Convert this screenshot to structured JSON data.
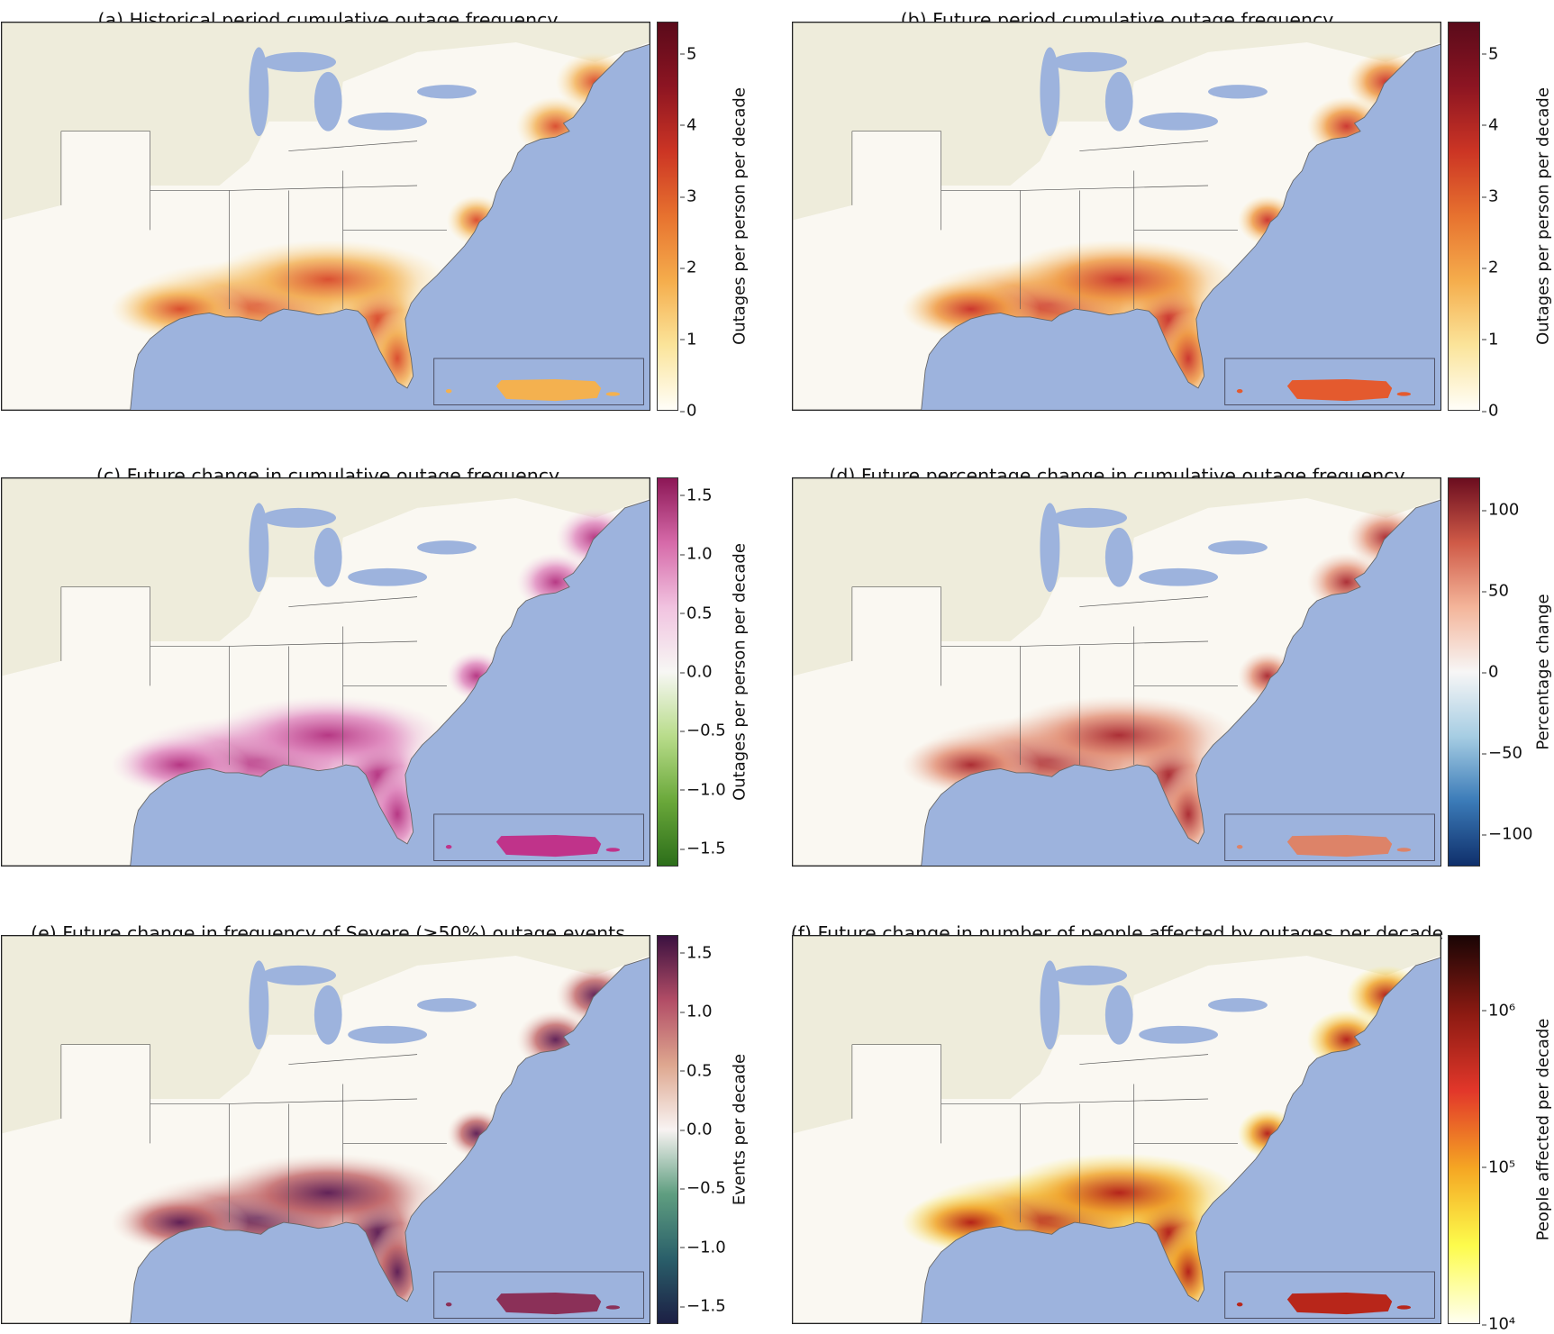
{
  "figure": {
    "panels": [
      {
        "id": "a",
        "title": "(a) Historical period cumulative outage frequency",
        "colorbar": {
          "label": "Outages per person per decade",
          "scale": "linear",
          "range": [
            0,
            5.45
          ],
          "ticks": [
            {
              "v": 0,
              "t": "0"
            },
            {
              "v": 1,
              "t": "1"
            },
            {
              "v": 2,
              "t": "2"
            },
            {
              "v": 3,
              "t": "3"
            },
            {
              "v": 4,
              "t": "4"
            },
            {
              "v": 5,
              "t": "5"
            }
          ],
          "colormap": [
            "#fffef8",
            "#fbe49a",
            "#f5ad4c",
            "#e7722f",
            "#cc3524",
            "#8d1522",
            "#5a0a1a"
          ]
        },
        "shading": {
          "low": "#fbe7b0",
          "mid": "#f3b259",
          "high": "#d8482a",
          "puerto_rico": "#f4b14f"
        }
      },
      {
        "id": "b",
        "title": "(b) Future period cumulative outage frequency",
        "colorbar": {
          "label": "Outages per person per decade",
          "scale": "linear",
          "range": [
            0,
            5.45
          ],
          "ticks": [
            {
              "v": 0,
              "t": "0"
            },
            {
              "v": 1,
              "t": "1"
            },
            {
              "v": 2,
              "t": "2"
            },
            {
              "v": 3,
              "t": "3"
            },
            {
              "v": 4,
              "t": "4"
            },
            {
              "v": 5,
              "t": "5"
            }
          ],
          "colormap": [
            "#fffef8",
            "#fbe49a",
            "#f5ad4c",
            "#e7722f",
            "#cc3524",
            "#8d1522",
            "#5a0a1a"
          ]
        },
        "shading": {
          "low": "#fbe0a0",
          "mid": "#ef9a45",
          "high": "#c9302a",
          "puerto_rico": "#e45a2e"
        }
      },
      {
        "id": "c",
        "title": "(c) Future change in cumulative outage frequency",
        "colorbar": {
          "label": "Outages per person per decade",
          "scale": "linear",
          "range": [
            -1.65,
            1.65
          ],
          "ticks": [
            {
              "v": 1.5,
              "t": "1.5"
            },
            {
              "v": 1.0,
              "t": "1.0"
            },
            {
              "v": 0.5,
              "t": "0.5"
            },
            {
              "v": 0,
              "t": "0.0"
            },
            {
              "v": -0.5,
              "t": "−0.5"
            },
            {
              "v": -1.0,
              "t": "−1.0"
            },
            {
              "v": -1.5,
              "t": "−1.5"
            }
          ],
          "colormap": [
            "#2c6e1a",
            "#6aa83a",
            "#b8dc8a",
            "#f7f7f4",
            "#f1c3e0",
            "#d66aa9",
            "#8c1756"
          ]
        },
        "shading": {
          "low": "#f5dceb",
          "mid": "#e08cc0",
          "high": "#b3307f",
          "puerto_rico": "#c0338a"
        }
      },
      {
        "id": "d",
        "title": "(d) Future percentage change in cumulative outage frequency",
        "colorbar": {
          "label": "Percentage change",
          "scale": "linear",
          "range": [
            -120,
            120
          ],
          "ticks": [
            {
              "v": 100,
              "t": "100"
            },
            {
              "v": 50,
              "t": "50"
            },
            {
              "v": 0,
              "t": "0"
            },
            {
              "v": -50,
              "t": "−50"
            },
            {
              "v": -100,
              "t": "−100"
            }
          ],
          "colormap": [
            "#0f2f6b",
            "#3b7bb8",
            "#a6cde3",
            "#f7f6f6",
            "#f4b59a",
            "#cf5a47",
            "#6b0d1f"
          ]
        },
        "shading": {
          "low": "#f1d3c3",
          "mid": "#e3937a",
          "high": "#a8262e",
          "puerto_rico": "#dd8368"
        }
      },
      {
        "id": "e",
        "title": "(e) Future change in frequency of Severe (≥50%) outage events",
        "colorbar": {
          "label": "Events per decade",
          "scale": "linear",
          "range": [
            -1.65,
            1.65
          ],
          "ticks": [
            {
              "v": 1.5,
              "t": "1.5"
            },
            {
              "v": 1.0,
              "t": "1.0"
            },
            {
              "v": 0.5,
              "t": "0.5"
            },
            {
              "v": 0,
              "t": "0.0"
            },
            {
              "v": -0.5,
              "t": "−0.5"
            },
            {
              "v": -1.0,
              "t": "−1.0"
            },
            {
              "v": -1.5,
              "t": "−1.5"
            }
          ],
          "colormap": [
            "#1c1f44",
            "#2a5f6a",
            "#5f9e80",
            "#f8f3f2",
            "#dea78f",
            "#b24d66",
            "#3b1140"
          ]
        },
        "shading": {
          "low": "#f2ddd3",
          "mid": "#c36b6d",
          "high": "#5a1a52",
          "puerto_rico": "#8b3058"
        }
      },
      {
        "id": "f",
        "title": "(f) Future change in number of people affected by outages per decade",
        "colorbar": {
          "label": "People affected per decade",
          "scale": "log",
          "range": [
            4,
            6.48
          ],
          "ticks": [
            {
              "v": 6,
              "t": "10⁶"
            },
            {
              "v": 5,
              "t": "10⁵"
            },
            {
              "v": 4,
              "t": "10⁴"
            }
          ],
          "colormap": [
            "#fffff0",
            "#fdfc4c",
            "#f5a623",
            "#e2372a",
            "#8b1a12",
            "#1a0505"
          ]
        },
        "shading": {
          "low": "#fbf26a",
          "mid": "#f0a42c",
          "high": "#b11a14",
          "puerto_rico": "#b8261a"
        }
      }
    ],
    "colors": {
      "ocean": "#9db3dd",
      "land": "#eeecdb",
      "border": "#888"
    }
  }
}
